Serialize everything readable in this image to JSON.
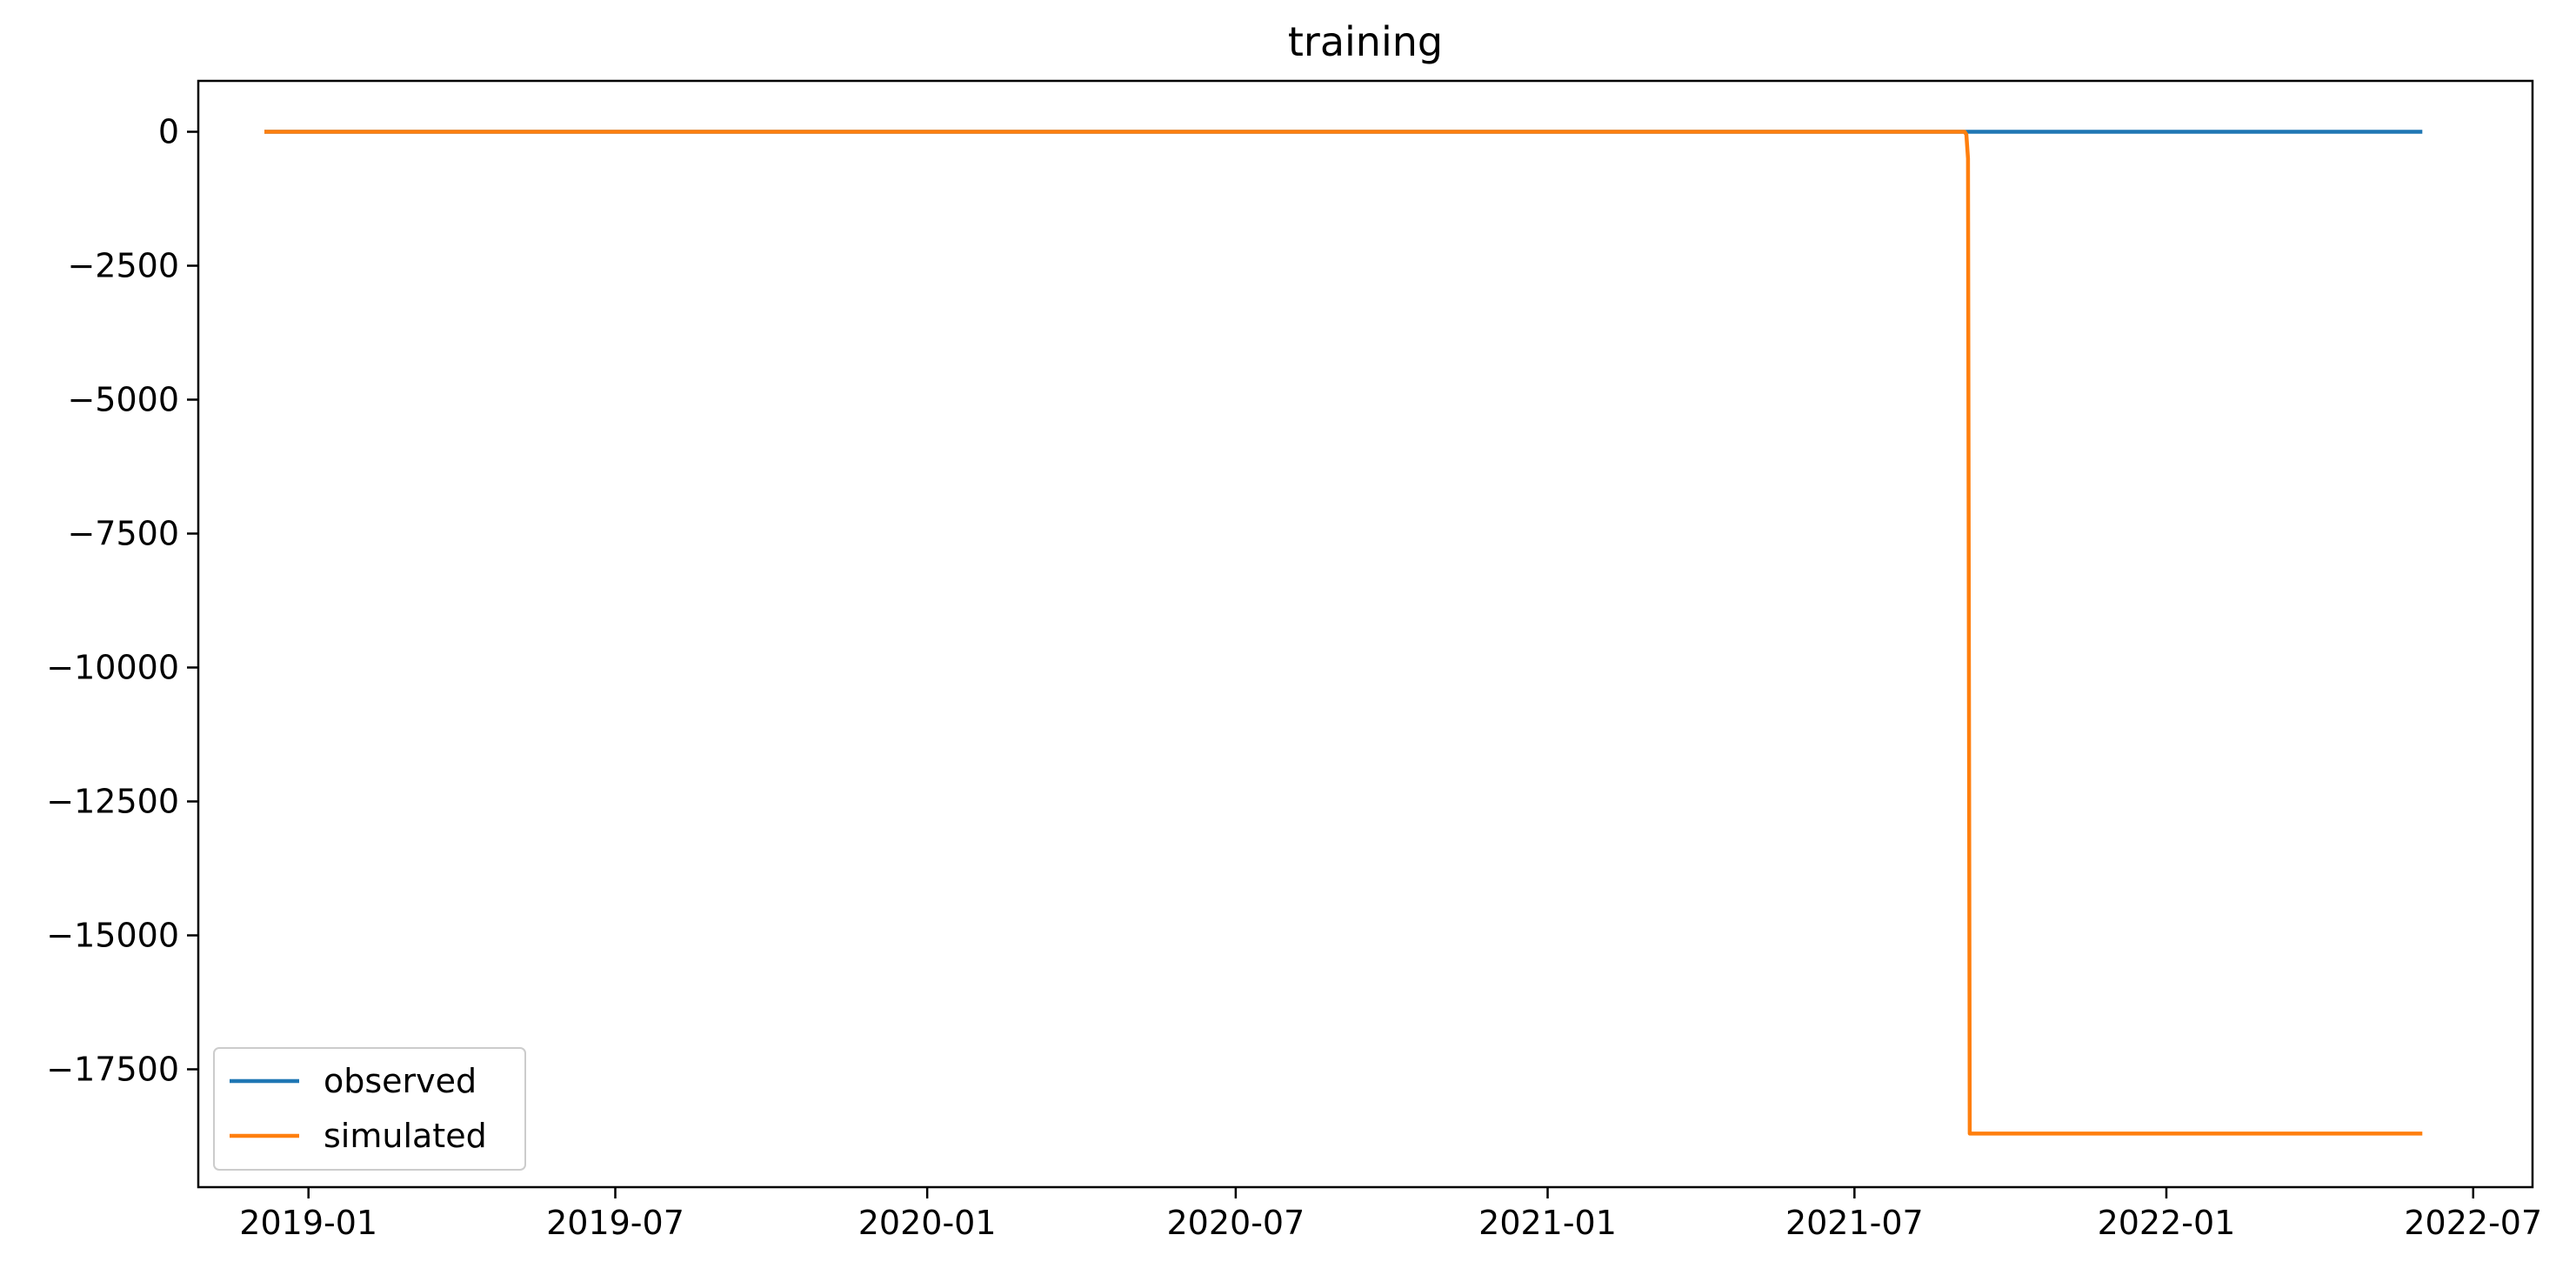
{
  "chart_data": {
    "type": "line",
    "title": "training",
    "xlabel": "",
    "ylabel": "",
    "x_axis_type": "date",
    "xlim": [
      "2018-10-28",
      "2022-08-05"
    ],
    "ylim": [
      -19700,
      950
    ],
    "x_ticks": [
      "2019-01",
      "2019-07",
      "2020-01",
      "2020-07",
      "2021-01",
      "2021-07",
      "2022-01",
      "2022-07"
    ],
    "y_ticks": [
      0,
      -2500,
      -5000,
      -7500,
      -10000,
      -12500,
      -15000,
      -17500
    ],
    "y_tick_labels": [
      "0",
      "−2500",
      "−5000",
      "−7500",
      "−10000",
      "−12500",
      "−15000",
      "−17500"
    ],
    "grid": false,
    "legend": {
      "position": "lower-left"
    },
    "series": [
      {
        "name": "observed",
        "color": "#1f77b4",
        "points": [
          [
            "2018-12-06",
            0
          ],
          [
            "2022-06-01",
            0
          ]
        ]
      },
      {
        "name": "simulated",
        "color": "#ff7f0e",
        "points": [
          [
            "2018-12-06",
            0
          ],
          [
            "2021-09-04",
            0
          ],
          [
            "2021-09-05",
            -50
          ],
          [
            "2021-09-06",
            -500
          ],
          [
            "2021-09-07",
            -18700
          ],
          [
            "2022-06-01",
            -18700
          ]
        ]
      }
    ]
  }
}
